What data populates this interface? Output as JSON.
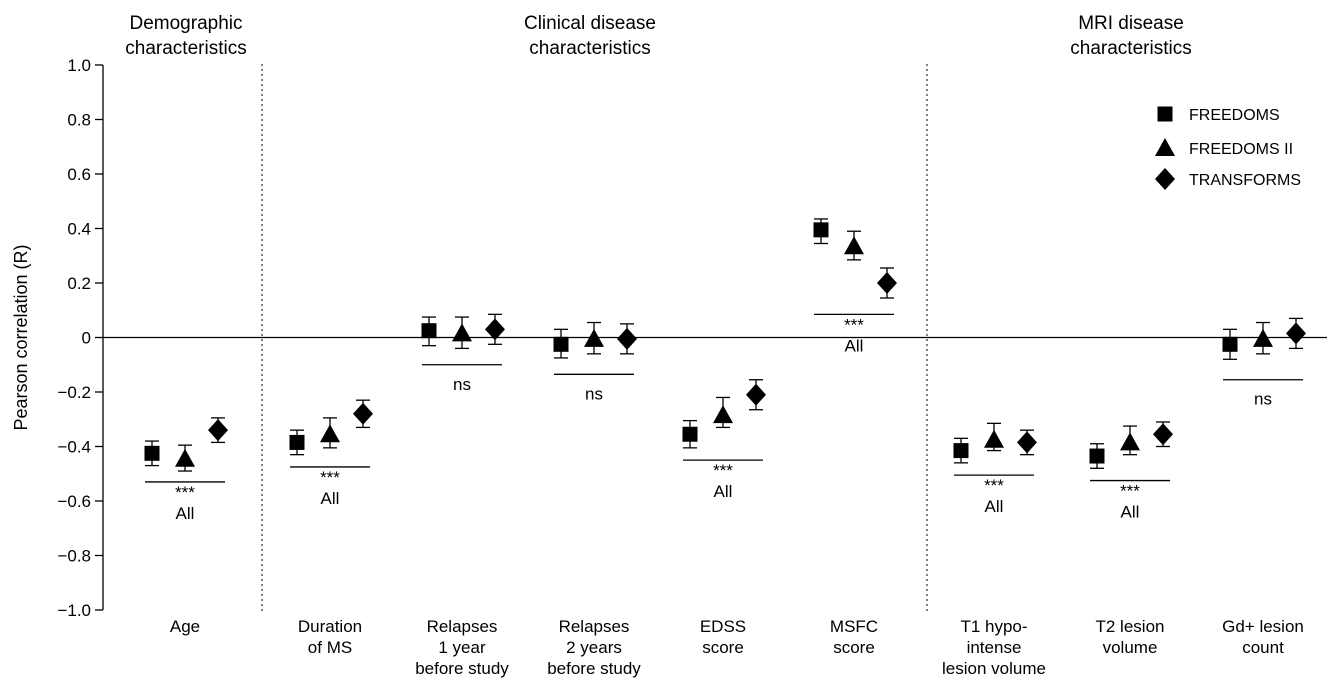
{
  "chart_data": {
    "type": "scatter",
    "ylabel": "Pearson correlation (R)",
    "ylim": [
      -1.0,
      1.0
    ],
    "yticks": [
      "−1.0",
      "−0.8",
      "−0.6",
      "−0.4",
      "−0.2",
      "0",
      "0.2",
      "0.4",
      "0.6",
      "0.8",
      "1.0"
    ],
    "groups": [
      {
        "label": [
          "Demographic",
          "characteristics"
        ]
      },
      {
        "label": [
          "Clinical disease",
          "characteristics"
        ]
      },
      {
        "label": [
          "MRI disease",
          "characteristics"
        ]
      }
    ],
    "categories": [
      {
        "label": [
          "Age"
        ],
        "sig_stars": "***",
        "sig_text": "All",
        "sig_y": -0.53
      },
      {
        "label": [
          "Duration",
          "of MS"
        ],
        "sig_stars": "***",
        "sig_text": "All",
        "sig_y": -0.475
      },
      {
        "label": [
          "Relapses",
          "1 year",
          "before study"
        ],
        "sig_stars": "",
        "sig_text": "ns",
        "sig_y": -0.1
      },
      {
        "label": [
          "Relapses",
          "2 years",
          "before study"
        ],
        "sig_stars": "",
        "sig_text": "ns",
        "sig_y": -0.135
      },
      {
        "label": [
          "EDSS",
          "score"
        ],
        "sig_stars": "***",
        "sig_text": "All",
        "sig_y": -0.45
      },
      {
        "label": [
          "MSFC",
          "score"
        ],
        "sig_stars": "***",
        "sig_text": "All",
        "sig_y": 0.085
      },
      {
        "label": [
          "T1 hypo-",
          "intense",
          "lesion volume"
        ],
        "sig_stars": "***",
        "sig_text": "All",
        "sig_y": -0.505
      },
      {
        "label": [
          "T2 lesion",
          "volume"
        ],
        "sig_stars": "***",
        "sig_text": "All",
        "sig_y": -0.525
      },
      {
        "label": [
          "Gd+ lesion",
          "count"
        ],
        "sig_stars": "",
        "sig_text": "ns",
        "sig_y": -0.155
      }
    ],
    "series": [
      {
        "name": "FREEDOMS",
        "marker": "square",
        "values": [
          -0.425,
          -0.385,
          0.025,
          -0.025,
          -0.355,
          0.395,
          -0.415,
          -0.435,
          -0.025
        ],
        "err_upper": [
          0.045,
          0.045,
          0.05,
          0.055,
          0.05,
          0.04,
          0.045,
          0.045,
          0.055
        ],
        "err_lower": [
          0.045,
          0.045,
          0.055,
          0.05,
          0.05,
          0.05,
          0.045,
          0.045,
          0.055
        ]
      },
      {
        "name": "FREEDOMS II",
        "marker": "triangle",
        "values": [
          -0.445,
          -0.355,
          0.015,
          -0.005,
          -0.285,
          0.335,
          -0.375,
          -0.385,
          -0.005
        ],
        "err_upper": [
          0.05,
          0.06,
          0.06,
          0.06,
          0.065,
          0.055,
          0.06,
          0.06,
          0.06
        ],
        "err_lower": [
          0.045,
          0.05,
          0.055,
          0.055,
          0.045,
          0.05,
          0.04,
          0.045,
          0.055
        ]
      },
      {
        "name": "TRANSFORMS",
        "marker": "diamond",
        "values": [
          -0.34,
          -0.28,
          0.03,
          -0.005,
          -0.21,
          0.2,
          -0.385,
          -0.355,
          0.015
        ],
        "err_upper": [
          0.045,
          0.05,
          0.055,
          0.055,
          0.055,
          0.055,
          0.045,
          0.045,
          0.055
        ],
        "err_lower": [
          0.045,
          0.05,
          0.055,
          0.055,
          0.055,
          0.055,
          0.045,
          0.045,
          0.055
        ]
      }
    ],
    "legend_position": "top-right",
    "grid": false
  }
}
